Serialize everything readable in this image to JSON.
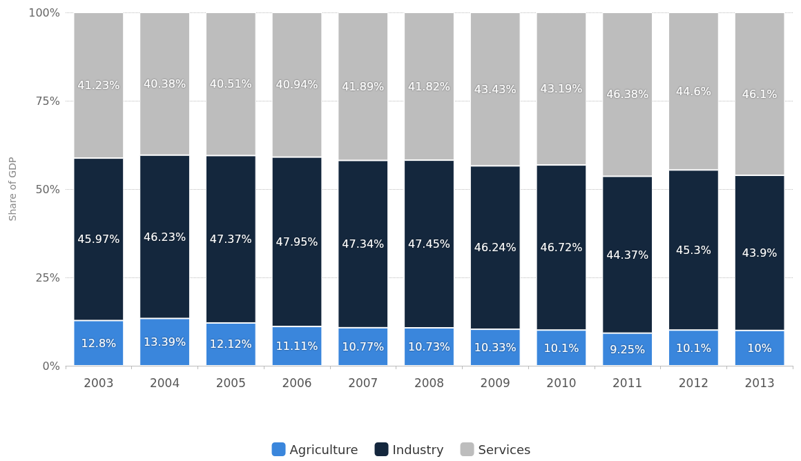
{
  "chart_data": {
    "type": "bar",
    "stacked": true,
    "ylabel": "Share of GDP",
    "categories": [
      "2003",
      "2004",
      "2005",
      "2006",
      "2007",
      "2008",
      "2009",
      "2010",
      "2011",
      "2012",
      "2013"
    ],
    "series": [
      {
        "name": "Agriculture",
        "color": "#3a86dc",
        "values": [
          12.8,
          13.39,
          12.12,
          11.11,
          10.77,
          10.73,
          10.33,
          10.1,
          9.25,
          10.1,
          10
        ],
        "value_labels": [
          "12.8%",
          "13.39%",
          "12.12%",
          "11.11%",
          "10.77%",
          "10.73%",
          "10.33%",
          "10.1%",
          "9.25%",
          "10.1%",
          "10%"
        ]
      },
      {
        "name": "Industry",
        "color": "#14273d",
        "values": [
          45.97,
          46.23,
          47.37,
          47.95,
          47.34,
          47.45,
          46.24,
          46.72,
          44.37,
          45.3,
          43.9
        ],
        "value_labels": [
          "45.97%",
          "46.23%",
          "47.37%",
          "47.95%",
          "47.34%",
          "47.45%",
          "46.24%",
          "46.72%",
          "44.37%",
          "45.3%",
          "43.9%"
        ]
      },
      {
        "name": "Services",
        "color": "#bdbdbd",
        "values": [
          41.23,
          40.38,
          40.51,
          40.94,
          41.89,
          41.82,
          43.43,
          43.19,
          46.38,
          44.6,
          46.1
        ],
        "value_labels": [
          "41.23%",
          "40.38%",
          "40.51%",
          "40.94%",
          "41.89%",
          "41.82%",
          "43.43%",
          "43.19%",
          "46.38%",
          "44.6%",
          "46.1%"
        ]
      }
    ],
    "ylim": [
      0,
      100
    ],
    "yticks": [
      {
        "value": 0,
        "label": "0%"
      },
      {
        "value": 25,
        "label": "25%"
      },
      {
        "value": 50,
        "label": "50%"
      },
      {
        "value": 75,
        "label": "75%"
      },
      {
        "value": 100,
        "label": "100%"
      }
    ],
    "grid": "y",
    "legend": "bottom"
  }
}
